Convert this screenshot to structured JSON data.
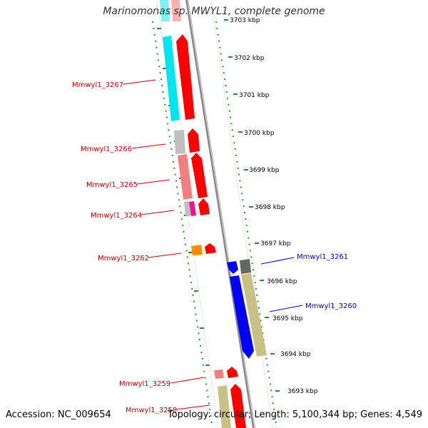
{
  "title": "Marinomonas sp. MWYL1, complete genome",
  "footer": {
    "accession": "Accession: NC_009654",
    "summary": "Topology: circular; Length: 5,100,344 bp; Genes: 4,549"
  },
  "ticks": [
    "3703 kbp",
    "3702 kbp",
    "3701 kbp",
    "3700 kbp",
    "3699 kbp",
    "3698 kbp",
    "3697 kbp",
    "3696 kbp",
    "3695 kbp",
    "3694 kbp",
    "3693 kbp"
  ],
  "genes_left": [
    {
      "name": "Mmwyl1_3267",
      "color": "#cc0000"
    },
    {
      "name": "Mmwyl1_3266",
      "color": "#cc0000"
    },
    {
      "name": "Mmwyl1_3265",
      "color": "#cc0000"
    },
    {
      "name": "Mmwyl1_3264",
      "color": "#cc0000"
    },
    {
      "name": "Mmwyl1_3262",
      "color": "#cc0000"
    },
    {
      "name": "Mmwyl1_3259",
      "color": "#cc0000"
    },
    {
      "name": "Mmwyl1_3258",
      "color": "#cc0000"
    }
  ],
  "genes_right": [
    {
      "name": "Mmwyl1_3261",
      "color": "#0000cc"
    },
    {
      "name": "Mmwyl1_3260",
      "color": "#0000cc"
    }
  ],
  "colors": {
    "track_dots": "#2e8b2e",
    "backbone": "#888888",
    "forward": "#ff0000",
    "reverse": "#0000ff",
    "cyan": "#00e5ee",
    "khaki": "#c8c084",
    "grey": "#bfbfbf",
    "salmon": "#f08080",
    "magenta": "#ee1493",
    "orange": "#ff8c00"
  }
}
